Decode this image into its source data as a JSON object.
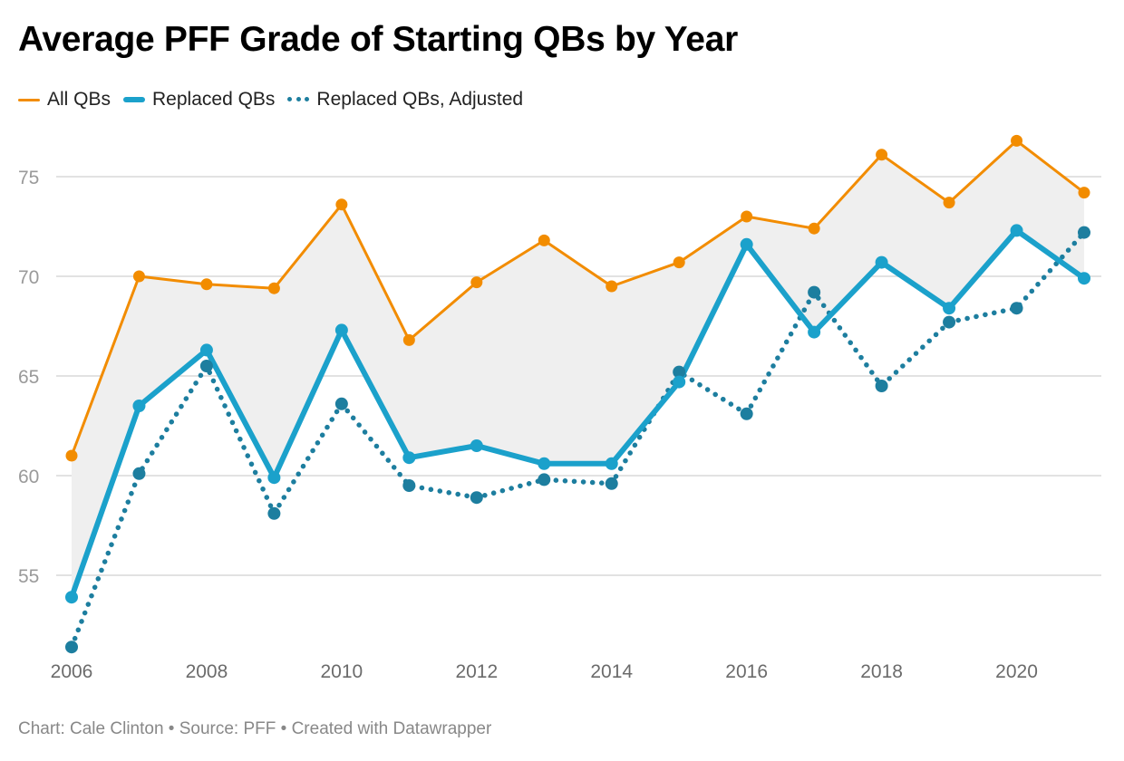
{
  "chart_data": {
    "type": "line",
    "title": "Average PFF Grade of Starting QBs by Year",
    "xlabel": "",
    "ylabel": "",
    "x": [
      2006,
      2007,
      2008,
      2009,
      2010,
      2011,
      2012,
      2013,
      2014,
      2015,
      2016,
      2017,
      2018,
      2019,
      2020,
      2021
    ],
    "x_ticks": [
      "2006",
      "2008",
      "2010",
      "2012",
      "2014",
      "2016",
      "2018",
      "2020"
    ],
    "y_ticks": [
      "55",
      "60",
      "65",
      "70",
      "75"
    ],
    "ylim": [
      50.5,
      77.5
    ],
    "xlim": [
      2006,
      2021
    ],
    "grid": true,
    "legend_position": "top-left",
    "shaded_range_between": [
      "All QBs",
      "Replaced QBs"
    ],
    "series": [
      {
        "name": "All QBs",
        "color": "#f28c00",
        "style": "solid-thin",
        "values": [
          61.0,
          70.0,
          69.6,
          69.4,
          73.6,
          66.8,
          69.7,
          71.8,
          69.5,
          70.7,
          73.0,
          72.4,
          76.1,
          73.7,
          76.8,
          74.2
        ]
      },
      {
        "name": "Replaced QBs",
        "color": "#1ba1cb",
        "style": "solid-thick",
        "values": [
          53.9,
          63.5,
          66.3,
          59.9,
          67.3,
          60.9,
          61.5,
          60.6,
          60.6,
          64.7,
          71.6,
          67.2,
          70.7,
          68.4,
          72.3,
          69.9
        ]
      },
      {
        "name": "Replaced QBs, Adjusted",
        "color": "#1d7e9f",
        "style": "dotted",
        "values": [
          51.4,
          60.1,
          65.5,
          58.1,
          63.6,
          59.5,
          58.9,
          59.8,
          59.6,
          65.2,
          63.1,
          69.2,
          64.5,
          67.7,
          68.4,
          72.2
        ]
      }
    ]
  },
  "header": {
    "title": "Average PFF Grade of Starting QBs by Year"
  },
  "legend": {
    "items": [
      "All QBs",
      "Replaced QBs",
      "Replaced QBs, Adjusted"
    ]
  },
  "footer": {
    "text": "Chart: Cale Clinton • Source: PFF • Created with Datawrapper"
  },
  "colors": {
    "all": "#f28c00",
    "replaced": "#1ba1cb",
    "adjusted": "#1d7e9f",
    "shade": "#efefef",
    "grid": "#e2e2e2"
  }
}
